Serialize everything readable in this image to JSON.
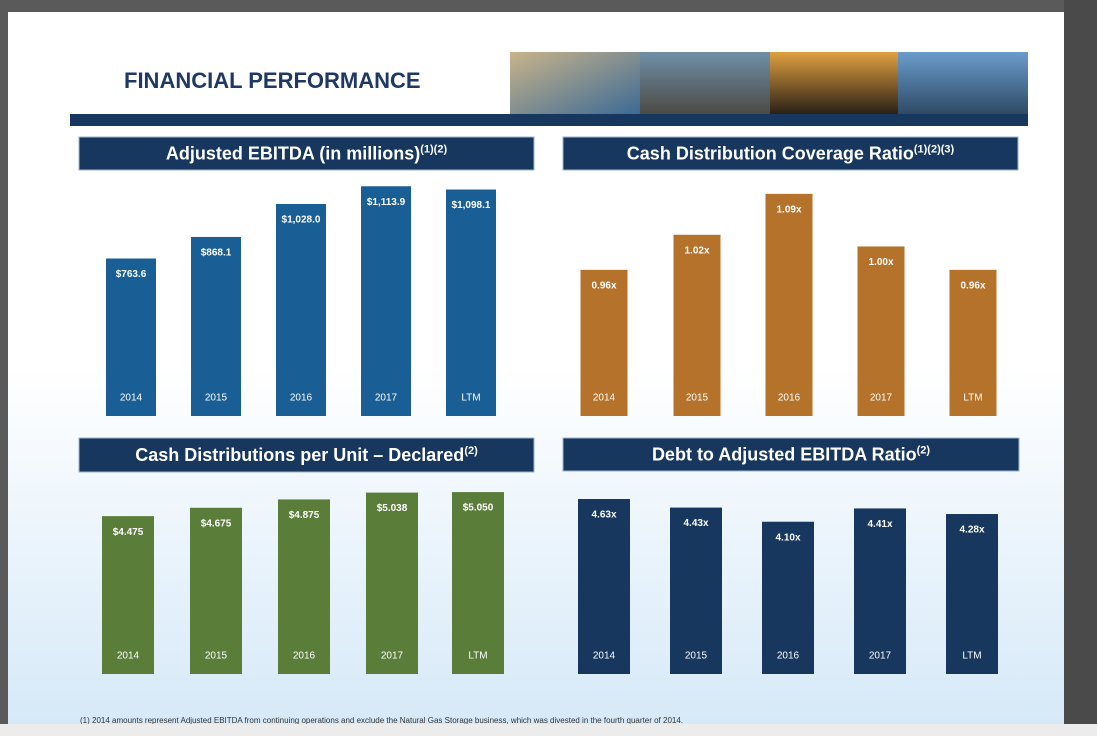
{
  "title": "FINANCIAL PERFORMANCE",
  "footnote": "(1)  2014 amounts represent Adjusted EBITDA from continuing operations and exclude the Natural Gas Storage business, which was divested in the fourth quarter of 2014.",
  "chart_data": [
    {
      "type": "bar",
      "title": "Adjusted EBITDA (in millions)",
      "title_superscript": "(1)(2)",
      "categories": [
        "2014",
        "2015",
        "2016",
        "2017",
        "LTM"
      ],
      "values": [
        763.6,
        868.1,
        1028.0,
        1113.9,
        1098.1
      ],
      "value_labels": [
        "$763.6",
        "$868.1",
        "$1,028.0",
        "$1,113.9",
        "$1,098.1"
      ],
      "color": "#1a5e96",
      "ylim": [
        0,
        1120
      ]
    },
    {
      "type": "bar",
      "title": "Cash Distribution Coverage Ratio",
      "title_superscript": "(1)(2)(3)",
      "categories": [
        "2014",
        "2015",
        "2016",
        "2017",
        "LTM"
      ],
      "values": [
        0.96,
        1.02,
        1.09,
        1.0,
        0.96
      ],
      "value_labels": [
        "0.96x",
        "1.02x",
        "1.09x",
        "1.00x",
        "0.96x"
      ],
      "color": "#b5722a",
      "ylim": [
        0.71,
        1.1
      ]
    },
    {
      "type": "bar",
      "title": "Cash Distributions per Unit – Declared",
      "title_superscript": "(2)",
      "categories": [
        "2014",
        "2015",
        "2016",
        "2017",
        "LTM"
      ],
      "values": [
        4.475,
        4.675,
        4.875,
        5.038,
        5.05
      ],
      "value_labels": [
        "$4.475",
        "$4.675",
        "$4.875",
        "$5.038",
        "$5.050"
      ],
      "color": "#5a7d3a",
      "ylim": [
        0.7,
        5.1
      ]
    },
    {
      "type": "bar",
      "title": "Debt to Adjusted EBITDA Ratio",
      "title_superscript": "(2)",
      "categories": [
        "2014",
        "2015",
        "2016",
        "2017",
        "LTM"
      ],
      "values": [
        4.63,
        4.43,
        4.1,
        4.41,
        4.28
      ],
      "value_labels": [
        "4.63x",
        "4.43x",
        "4.10x",
        "4.41x",
        "4.28x"
      ],
      "color": "#17375e",
      "ylim": [
        0.55,
        4.7
      ]
    }
  ]
}
